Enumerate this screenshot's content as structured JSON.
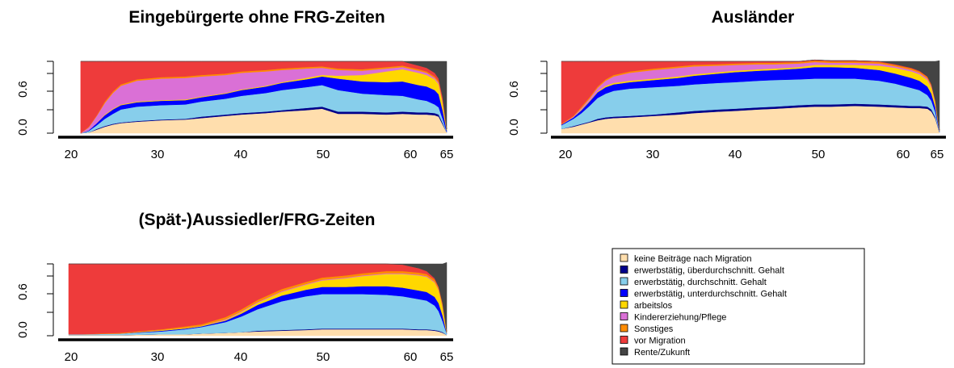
{
  "chart_data": [
    {
      "type": "area",
      "stacked": true,
      "normalized": true,
      "title": "Eingebürgerte ohne FRG-Zeiten",
      "xlabel": "",
      "ylabel": "",
      "x_ticks": [
        "20",
        "30",
        "40",
        "50",
        "60",
        "65"
      ],
      "y_ticks": [
        "0.0",
        "0.6"
      ],
      "xlim": [
        18,
        66
      ],
      "ylim": [
        0,
        1
      ],
      "x": [
        20,
        21,
        22,
        23,
        24,
        25,
        27,
        30,
        33,
        35,
        38,
        40,
        43,
        45,
        48,
        50,
        52,
        55,
        58,
        60,
        62,
        63,
        64,
        64.5,
        65,
        65.5
      ],
      "series": [
        {
          "values": [
            0,
            0.01,
            0.05,
            0.09,
            0.12,
            0.14,
            0.16,
            0.18,
            0.19,
            0.21,
            0.24,
            0.26,
            0.28,
            0.3,
            0.32,
            0.34,
            0.27,
            0.27,
            0.26,
            0.27,
            0.26,
            0.26,
            0.25,
            0.23,
            0.12,
            0.01
          ],
          "color": "#FFDEAD"
        },
        {
          "values": [
            0,
            0,
            0.01,
            0.01,
            0.01,
            0.01,
            0.01,
            0.01,
            0.01,
            0.02,
            0.02,
            0.02,
            0.02,
            0.02,
            0.03,
            0.03,
            0.03,
            0.03,
            0.03,
            0.03,
            0.03,
            0.03,
            0.03,
            0.03,
            0.02,
            0
          ],
          "color": "#00008B"
        },
        {
          "values": [
            0,
            0.02,
            0.05,
            0.1,
            0.14,
            0.18,
            0.2,
            0.2,
            0.2,
            0.21,
            0.22,
            0.24,
            0.26,
            0.28,
            0.29,
            0.3,
            0.3,
            0.25,
            0.24,
            0.22,
            0.18,
            0.16,
            0.12,
            0.1,
            0.06,
            0.01
          ],
          "color": "#87CEEB"
        },
        {
          "values": [
            0,
            0.01,
            0.03,
            0.05,
            0.06,
            0.06,
            0.06,
            0.06,
            0.06,
            0.06,
            0.07,
            0.08,
            0.09,
            0.1,
            0.11,
            0.12,
            0.16,
            0.17,
            0.18,
            0.2,
            0.2,
            0.2,
            0.2,
            0.18,
            0.12,
            0.02
          ],
          "color": "#0000FF"
        },
        {
          "values": [
            0,
            0,
            0,
            0.01,
            0.01,
            0.01,
            0.01,
            0.01,
            0.01,
            0.01,
            0.01,
            0.01,
            0.01,
            0.01,
            0.02,
            0.02,
            0.04,
            0.09,
            0.15,
            0.17,
            0.17,
            0.16,
            0.15,
            0.14,
            0.1,
            0.02
          ],
          "color": "#FFD700"
        },
        {
          "values": [
            0,
            0.04,
            0.1,
            0.16,
            0.22,
            0.26,
            0.29,
            0.3,
            0.3,
            0.28,
            0.25,
            0.23,
            0.2,
            0.17,
            0.13,
            0.1,
            0.08,
            0.06,
            0.04,
            0.03,
            0.03,
            0.03,
            0.02,
            0.02,
            0.02,
            0
          ],
          "color": "#DA70D6"
        },
        {
          "values": [
            0,
            0.01,
            0.01,
            0.02,
            0.02,
            0.02,
            0.02,
            0.02,
            0.02,
            0.02,
            0.02,
            0.02,
            0.02,
            0.02,
            0.02,
            0.02,
            0.02,
            0.02,
            0.02,
            0.02,
            0.02,
            0.02,
            0.02,
            0.02,
            0.02,
            0
          ],
          "color": "#FF8C00"
        },
        {
          "values": [
            1,
            0.91,
            0.75,
            0.56,
            0.42,
            0.32,
            0.25,
            0.22,
            0.21,
            0.19,
            0.17,
            0.14,
            0.12,
            0.1,
            0.08,
            0.07,
            0.1,
            0.11,
            0.08,
            0.06,
            0.05,
            0.05,
            0.05,
            0.04,
            0.04,
            0
          ],
          "color": "#EE3B3B"
        },
        {
          "values": [
            0,
            0,
            0,
            0,
            0,
            0,
            0,
            0,
            0,
            0,
            0,
            0,
            0,
            0,
            0,
            0,
            0,
            0,
            0,
            0,
            0.06,
            0.09,
            0.16,
            0.24,
            0.5,
            0.94
          ],
          "color": "#444444"
        }
      ]
    },
    {
      "type": "area",
      "stacked": true,
      "normalized": true,
      "title": "Ausländer",
      "xlabel": "",
      "ylabel": "",
      "x_ticks": [
        "20",
        "30",
        "40",
        "50",
        "60",
        "65"
      ],
      "y_ticks": [
        "0.0",
        "0.6"
      ],
      "xlim": [
        18,
        66
      ],
      "ylim": [
        0,
        1
      ],
      "x": [
        18.5,
        20,
        21,
        22,
        23,
        24,
        25,
        27,
        30,
        33,
        35,
        38,
        40,
        43,
        45,
        48,
        50,
        52,
        55,
        58,
        60,
        62,
        63,
        64,
        64.5,
        65,
        65.5
      ],
      "series": [
        {
          "values": [
            0.06,
            0.09,
            0.12,
            0.15,
            0.18,
            0.2,
            0.21,
            0.22,
            0.24,
            0.26,
            0.28,
            0.3,
            0.31,
            0.33,
            0.34,
            0.36,
            0.37,
            0.37,
            0.38,
            0.37,
            0.36,
            0.35,
            0.35,
            0.34,
            0.3,
            0.2,
            0.01
          ],
          "color": "#FFDEAD"
        },
        {
          "values": [
            0,
            0.01,
            0.01,
            0.01,
            0.02,
            0.02,
            0.02,
            0.02,
            0.02,
            0.03,
            0.03,
            0.03,
            0.03,
            0.03,
            0.03,
            0.03,
            0.03,
            0.03,
            0.03,
            0.03,
            0.03,
            0.03,
            0.03,
            0.03,
            0.03,
            0.02,
            0
          ],
          "color": "#00008B"
        },
        {
          "values": [
            0.05,
            0.1,
            0.15,
            0.22,
            0.29,
            0.33,
            0.36,
            0.38,
            0.38,
            0.37,
            0.37,
            0.37,
            0.37,
            0.37,
            0.37,
            0.36,
            0.36,
            0.36,
            0.35,
            0.33,
            0.3,
            0.25,
            0.22,
            0.16,
            0.12,
            0.07,
            0.01
          ],
          "color": "#87CEEB"
        },
        {
          "values": [
            0.01,
            0.02,
            0.04,
            0.06,
            0.08,
            0.09,
            0.09,
            0.09,
            0.1,
            0.11,
            0.12,
            0.13,
            0.14,
            0.14,
            0.14,
            0.15,
            0.16,
            0.16,
            0.15,
            0.15,
            0.14,
            0.14,
            0.13,
            0.12,
            0.1,
            0.07,
            0.01
          ],
          "color": "#0000FF"
        },
        {
          "values": [
            0,
            0,
            0.01,
            0.01,
            0.01,
            0.02,
            0.02,
            0.02,
            0.02,
            0.02,
            0.02,
            0.02,
            0.02,
            0.02,
            0.02,
            0.02,
            0.03,
            0.03,
            0.04,
            0.06,
            0.08,
            0.09,
            0.09,
            0.09,
            0.08,
            0.06,
            0.01
          ],
          "color": "#FFD700"
        },
        {
          "values": [
            0,
            0.01,
            0.02,
            0.03,
            0.05,
            0.07,
            0.09,
            0.11,
            0.12,
            0.12,
            0.11,
            0.09,
            0.08,
            0.07,
            0.06,
            0.05,
            0.04,
            0.03,
            0.03,
            0.03,
            0.02,
            0.02,
            0.02,
            0.02,
            0.02,
            0.01,
            0
          ],
          "color": "#DA70D6"
        },
        {
          "values": [
            0.01,
            0.01,
            0.02,
            0.02,
            0.02,
            0.02,
            0.02,
            0.02,
            0.02,
            0.02,
            0.02,
            0.02,
            0.02,
            0.02,
            0.02,
            0.02,
            0.02,
            0.02,
            0.02,
            0.02,
            0.02,
            0.02,
            0.02,
            0.02,
            0.02,
            0.01,
            0
          ],
          "color": "#FF8C00"
        },
        {
          "values": [
            0.87,
            0.76,
            0.63,
            0.5,
            0.35,
            0.25,
            0.19,
            0.14,
            0.1,
            0.07,
            0.05,
            0.04,
            0.03,
            0.02,
            0.02,
            0.01,
            0.01,
            0.01,
            0.01,
            0.01,
            0.01,
            0.01,
            0.01,
            0.01,
            0.01,
            0.01,
            0
          ],
          "color": "#EE3B3B"
        },
        {
          "values": [
            0,
            0,
            0,
            0,
            0,
            0,
            0,
            0,
            0,
            0,
            0,
            0,
            0,
            0,
            0,
            0,
            0,
            0,
            0,
            0,
            0.04,
            0.09,
            0.13,
            0.21,
            0.32,
            0.55,
            0.97
          ],
          "color": "#444444"
        }
      ]
    },
    {
      "type": "area",
      "stacked": true,
      "normalized": true,
      "title": "(Spät-)Aussiedler/FRG-Zeiten",
      "xlabel": "",
      "ylabel": "",
      "x_ticks": [
        "20",
        "30",
        "40",
        "50",
        "60",
        "65"
      ],
      "y_ticks": [
        "0.0",
        "0.6"
      ],
      "xlim": [
        18,
        66
      ],
      "ylim": [
        0,
        1
      ],
      "x": [
        18.5,
        20,
        25,
        30,
        33,
        35,
        38,
        40,
        42,
        45,
        48,
        50,
        53,
        55,
        58,
        60,
        62,
        63,
        64,
        64.5,
        65,
        65.5
      ],
      "series": [
        {
          "values": [
            0.01,
            0.01,
            0.01,
            0.02,
            0.02,
            0.03,
            0.04,
            0.05,
            0.06,
            0.07,
            0.08,
            0.09,
            0.09,
            0.09,
            0.09,
            0.09,
            0.08,
            0.08,
            0.07,
            0.06,
            0.04,
            0.01
          ],
          "color": "#FFDEAD"
        },
        {
          "values": [
            0,
            0,
            0,
            0,
            0,
            0,
            0,
            0,
            0.01,
            0.01,
            0.01,
            0.01,
            0.01,
            0.01,
            0.01,
            0.01,
            0.01,
            0.01,
            0.01,
            0.01,
            0.01,
            0
          ],
          "color": "#00008B"
        },
        {
          "values": [
            0.01,
            0.01,
            0.02,
            0.04,
            0.07,
            0.09,
            0.15,
            0.22,
            0.3,
            0.4,
            0.46,
            0.48,
            0.48,
            0.48,
            0.47,
            0.45,
            0.42,
            0.4,
            0.34,
            0.27,
            0.15,
            0.02
          ],
          "color": "#87CEEB"
        },
        {
          "values": [
            0,
            0,
            0,
            0.01,
            0.01,
            0.01,
            0.02,
            0.04,
            0.06,
            0.08,
            0.09,
            0.1,
            0.1,
            0.11,
            0.12,
            0.12,
            0.12,
            0.12,
            0.12,
            0.11,
            0.08,
            0.01
          ],
          "color": "#0000FF"
        },
        {
          "values": [
            0,
            0,
            0,
            0.01,
            0.01,
            0.01,
            0.01,
            0.02,
            0.03,
            0.05,
            0.07,
            0.09,
            0.12,
            0.14,
            0.17,
            0.19,
            0.21,
            0.21,
            0.2,
            0.18,
            0.12,
            0.02
          ],
          "color": "#FFD700"
        },
        {
          "values": [
            0,
            0,
            0,
            0,
            0,
            0,
            0.01,
            0.01,
            0.01,
            0.01,
            0.01,
            0.01,
            0.01,
            0.01,
            0.01,
            0.01,
            0.01,
            0.01,
            0.01,
            0.01,
            0.01,
            0
          ],
          "color": "#DA70D6"
        },
        {
          "values": [
            0,
            0,
            0.01,
            0.01,
            0.02,
            0.02,
            0.03,
            0.03,
            0.03,
            0.03,
            0.03,
            0.03,
            0.03,
            0.03,
            0.03,
            0.03,
            0.03,
            0.03,
            0.03,
            0.03,
            0.03,
            0
          ],
          "color": "#FF8C00"
        },
        {
          "values": [
            0.98,
            0.98,
            0.96,
            0.91,
            0.87,
            0.84,
            0.74,
            0.63,
            0.5,
            0.35,
            0.25,
            0.19,
            0.16,
            0.13,
            0.1,
            0.09,
            0.06,
            0.04,
            0.02,
            0.01,
            0.01,
            0
          ],
          "color": "#EE3B3B"
        },
        {
          "values": [
            0,
            0,
            0,
            0,
            0,
            0,
            0,
            0,
            0,
            0,
            0,
            0,
            0,
            0,
            0,
            0.01,
            0.06,
            0.1,
            0.2,
            0.32,
            0.55,
            0.96
          ],
          "color": "#444444"
        }
      ]
    }
  ],
  "legend": {
    "items": [
      {
        "label": "keine Beiträge nach Migration",
        "color": "#FFDEAD"
      },
      {
        "label": "erwerbstätig, überdurchschnitt. Gehalt",
        "color": "#00008B"
      },
      {
        "label": "erwerbstätig, durchschnitt. Gehalt",
        "color": "#87CEEB"
      },
      {
        "label": "erwerbstätig, unterdurchschnitt. Gehalt",
        "color": "#0000FF"
      },
      {
        "label": "arbeitslos",
        "color": "#FFD700"
      },
      {
        "label": "Kindererziehung/Pflege",
        "color": "#DA70D6"
      },
      {
        "label": "Sonstiges",
        "color": "#FF8C00"
      },
      {
        "label": "vor Migration",
        "color": "#EE3B3B"
      },
      {
        "label": "Rente/Zukunft",
        "color": "#444444"
      }
    ]
  }
}
